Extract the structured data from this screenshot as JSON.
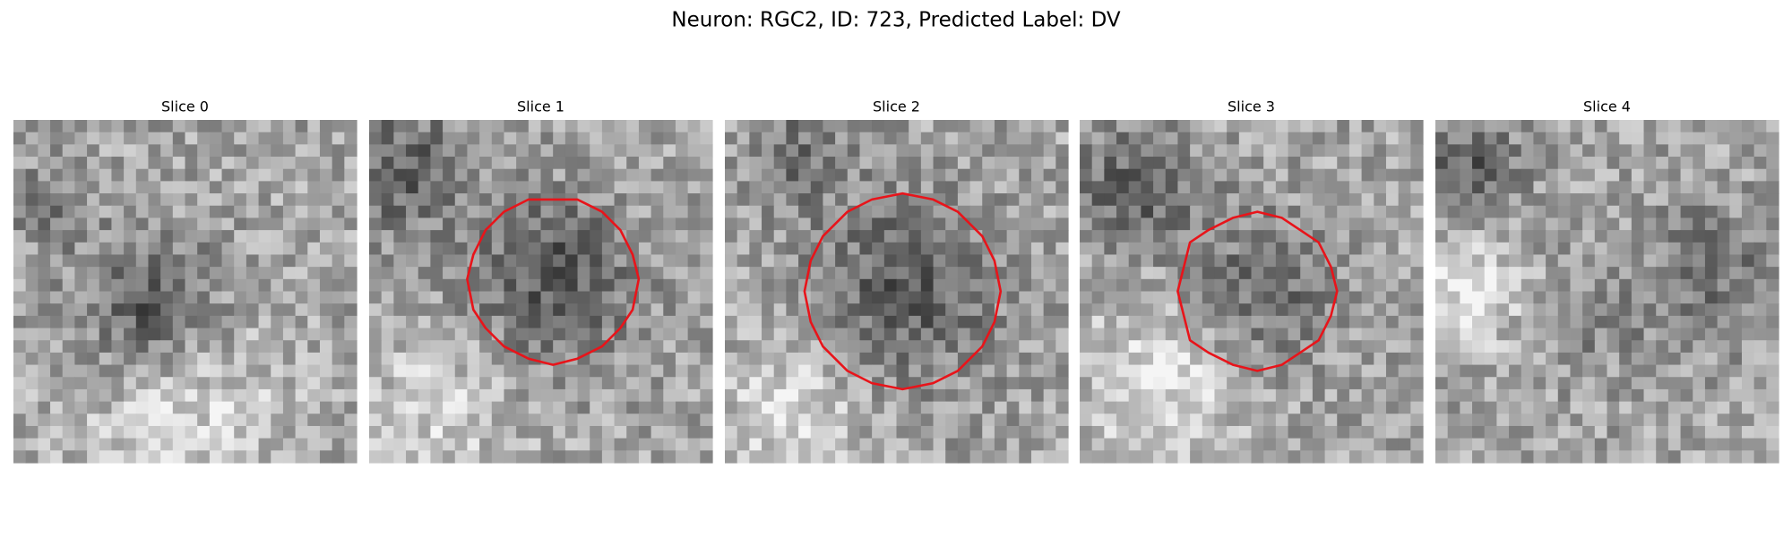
{
  "title": "Neuron: RGC2, ID: 723, Predicted Label: DV",
  "panels": [
    {
      "title": "Slice 0"
    },
    {
      "title": "Slice 1"
    },
    {
      "title": "Slice 2"
    },
    {
      "title": "Slice 3"
    },
    {
      "title": "Slice 4"
    }
  ]
}
